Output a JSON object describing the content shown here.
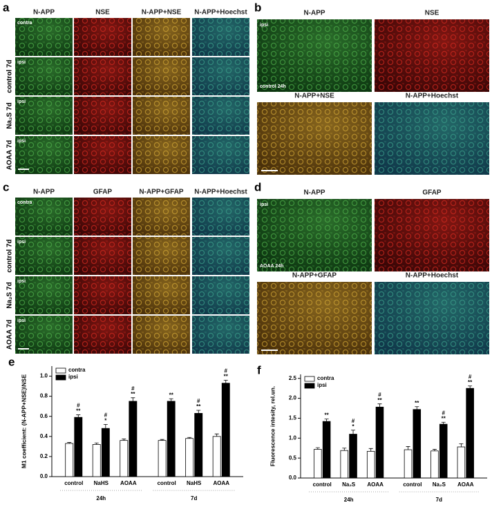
{
  "panels": [
    {
      "letter": "a",
      "columns": [
        "N-APP",
        "NSE",
        "N-APP+NSE",
        "N-APP+Hoechst"
      ],
      "rows": [
        {
          "tag": "contra"
        },
        {
          "label": "control 7d",
          "tag": "ipsi"
        },
        {
          "label": "Na₂S 7d",
          "tag": "ipsi"
        },
        {
          "label": "AOAA 7d",
          "tag": "ipsi"
        }
      ]
    },
    {
      "letter": "b",
      "columns": [
        "N-APP",
        "NSE",
        "N-APP+NSE",
        "N-APP+Hoechst"
      ],
      "tag": "ipsi",
      "label": "control 24h"
    },
    {
      "letter": "c",
      "columns": [
        "N-APP",
        "GFAP",
        "N-APP+GFAP",
        "N-APP+Hoechst"
      ],
      "rows": [
        {
          "tag": "contra"
        },
        {
          "label": "control 7d",
          "tag": "ipsi"
        },
        {
          "label": "Na₂S 7d",
          "tag": "ipsi"
        },
        {
          "label": "AOAA 7d",
          "tag": "ipsi"
        }
      ]
    },
    {
      "letter": "d",
      "columns": [
        "N-APP",
        "GFAP",
        "N-APP+GFAP",
        "N-APP+Hoechst"
      ],
      "tag": "ipsi",
      "label": "AOAA 24h"
    }
  ],
  "chart_data": [
    {
      "type": "bar",
      "panel_label": "e",
      "y_label": "M1 coefficient: (N-APP+NSE)\\NSE",
      "categories": [
        "control",
        "NaHS",
        "AOAA",
        "control",
        "NaHS",
        "AOAA"
      ],
      "groups": [
        "24h",
        "7d"
      ],
      "series": [
        {
          "name": "contra",
          "color": "#ffffff",
          "values": [
            0.33,
            0.32,
            0.36,
            0.36,
            0.38,
            0.4
          ],
          "errors": [
            0.01,
            0.015,
            0.015,
            0.01,
            0.01,
            0.025
          ]
        },
        {
          "name": "ipsi",
          "color": "#000000",
          "values": [
            0.59,
            0.48,
            0.75,
            0.75,
            0.63,
            0.93
          ],
          "errors": [
            0.025,
            0.04,
            0.035,
            0.025,
            0.03,
            0.03
          ],
          "sig_top": [
            "#",
            "#",
            "#",
            null,
            "#",
            "#"
          ],
          "sig_bottom": [
            "**",
            "*",
            "**",
            "**",
            "**",
            "**"
          ]
        }
      ],
      "ylim": [
        0,
        1.1
      ],
      "yticks": [
        {
          "value": 0,
          "label": "0.0"
        },
        0.2,
        0.4,
        0.6,
        0.8,
        {
          "value": 1,
          "label": "1.0"
        }
      ],
      "legend": "upper left"
    },
    {
      "type": "bar",
      "panel_label": "f",
      "y_label": "Fluorescence intesity, rel.un.",
      "categories": [
        "control",
        "Na₂S",
        "AOAA",
        "control",
        "Na₂S",
        "AOAA"
      ],
      "groups": [
        "24h",
        "7d"
      ],
      "series": [
        {
          "name": "contra",
          "color": "#ffffff",
          "values": [
            0.72,
            0.69,
            0.67,
            0.71,
            0.68,
            0.78
          ],
          "errors": [
            0.04,
            0.06,
            0.07,
            0.08,
            0.04,
            0.08
          ]
        },
        {
          "name": "ipsi",
          "color": "#000000",
          "values": [
            1.42,
            1.1,
            1.78,
            1.72,
            1.35,
            2.25
          ],
          "errors": [
            0.06,
            0.1,
            0.08,
            0.07,
            0.05,
            0.06
          ],
          "sig_top": [
            null,
            "#",
            "#",
            null,
            "#",
            "#"
          ],
          "sig_bottom": [
            "**",
            "*",
            "**",
            "**",
            "**",
            "**"
          ]
        }
      ],
      "ylim": [
        0,
        2.6
      ],
      "yticks": [
        {
          "value": 0,
          "label": "0.0"
        },
        0.5,
        {
          "value": 1,
          "label": "1.0"
        },
        1.5,
        {
          "value": 2,
          "label": "2.0"
        },
        2.5
      ],
      "legend": "upper left"
    }
  ]
}
